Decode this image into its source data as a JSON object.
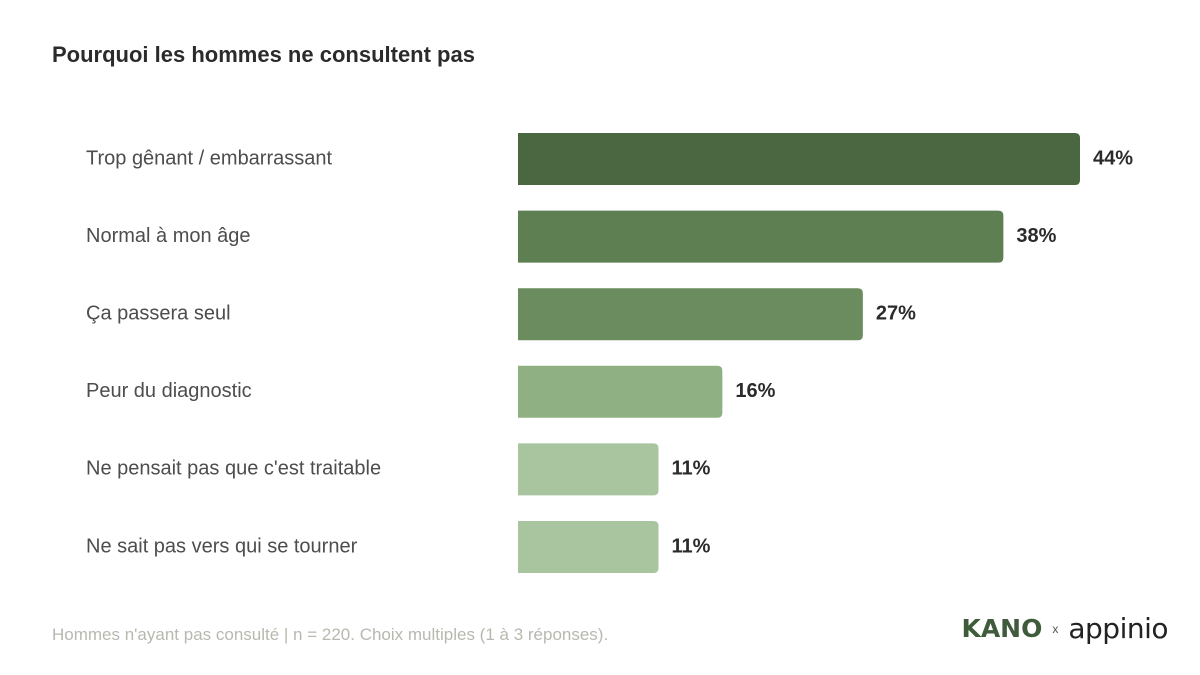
{
  "title": "Pourquoi les hommes ne consultent pas",
  "footnote": "Hommes n'ayant pas consulté | n = 220. Choix multiples (1 à 3 réponses).",
  "logos": {
    "kano": "KANO",
    "separator": "x",
    "appinio": "appinio"
  },
  "colors": {
    "bars": [
      "#4a6741",
      "#5d7f52",
      "#6b8c5f",
      "#8fb082",
      "#a8c59f",
      "#a8c59f"
    ],
    "brand_green": "#3f5b3c"
  },
  "chart_data": {
    "type": "bar",
    "orientation": "horizontal",
    "title": "Pourquoi les hommes ne consultent pas",
    "categories": [
      "Trop gênant / embarrassant",
      "Normal à mon âge",
      "Ça passera seul",
      "Peur du diagnostic",
      "Ne pensait pas que c'est traitable",
      "Ne sait pas vers qui se tourner"
    ],
    "values": [
      44,
      38,
      27,
      16,
      11,
      11
    ],
    "value_labels": [
      "44%",
      "38%",
      "27%",
      "16%",
      "11%",
      "11%"
    ],
    "unit": "%",
    "xlim": [
      0,
      44
    ],
    "grid": false,
    "legend": "none"
  }
}
